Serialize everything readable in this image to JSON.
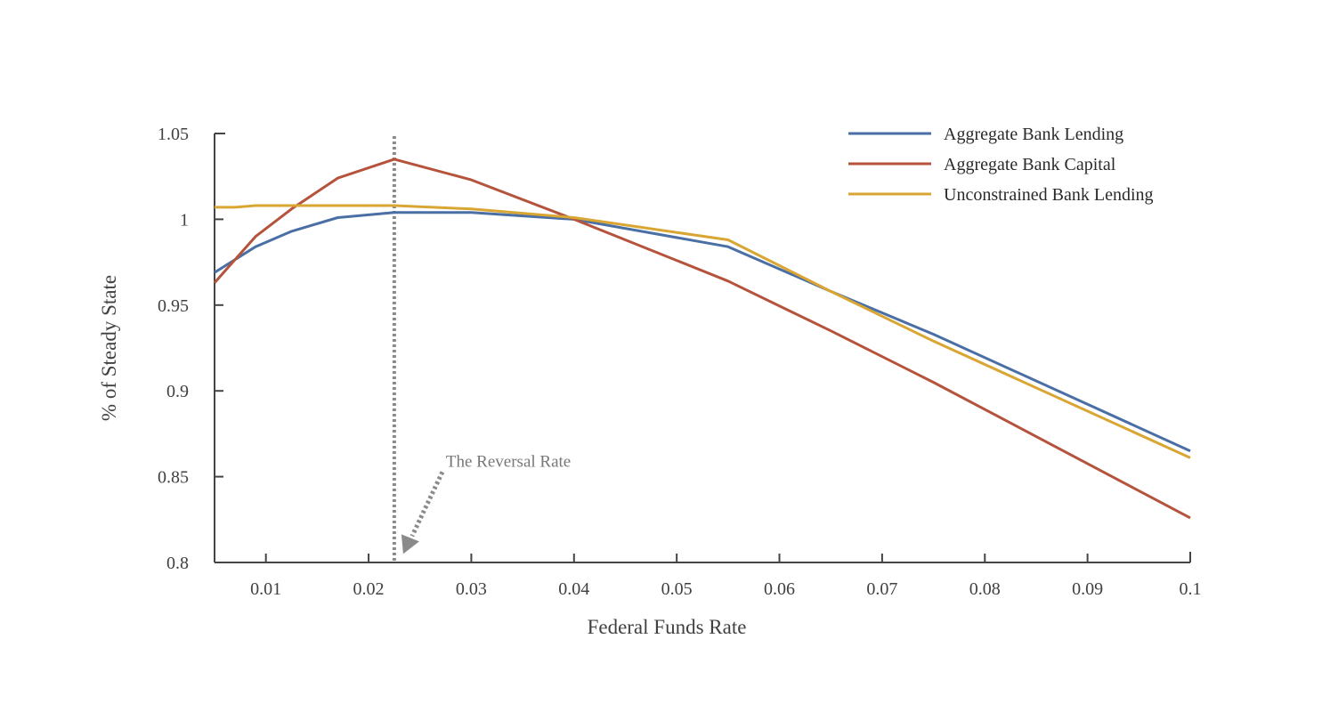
{
  "chart_data": {
    "type": "line",
    "xlabel": "Federal Funds Rate",
    "ylabel": "% of Steady State",
    "xlim": [
      0.005,
      0.1
    ],
    "ylim": [
      0.8,
      1.05
    ],
    "x_ticks": [
      0.01,
      0.02,
      0.03,
      0.04,
      0.05,
      0.06,
      0.07,
      0.08,
      0.09,
      0.1
    ],
    "x_tick_labels": [
      "0.01",
      "0.02",
      "0.03",
      "0.04",
      "0.05",
      "0.06",
      "0.07",
      "0.08",
      "0.09",
      "0.1"
    ],
    "y_ticks": [
      0.8,
      0.85,
      0.9,
      0.95,
      1.0,
      1.05
    ],
    "y_tick_labels": [
      "0.8",
      "0.85",
      "0.9",
      "0.95",
      "1",
      "1.05"
    ],
    "grid": false,
    "legend_position": "top-right",
    "series": [
      {
        "name": "Aggregate Bank Lending",
        "color": "#4a6fa5",
        "x": [
          0.005,
          0.009,
          0.0125,
          0.017,
          0.0225,
          0.03,
          0.04,
          0.055,
          0.065,
          0.075,
          0.1
        ],
        "y": [
          0.969,
          0.984,
          0.993,
          1.001,
          1.004,
          1.004,
          1.0,
          0.984,
          0.958,
          0.933,
          0.865
        ]
      },
      {
        "name": "Aggregate Bank Capital",
        "color": "#b5533c",
        "x": [
          0.005,
          0.009,
          0.0125,
          0.017,
          0.0225,
          0.03,
          0.04,
          0.055,
          0.065,
          0.075,
          0.1
        ],
        "y": [
          0.963,
          0.99,
          1.006,
          1.024,
          1.035,
          1.023,
          1.0,
          0.964,
          0.935,
          0.905,
          0.826
        ]
      },
      {
        "name": "Unconstrained Bank Lending",
        "color": "#d9a634",
        "x": [
          0.005,
          0.007,
          0.009,
          0.0225,
          0.03,
          0.04,
          0.055,
          0.065,
          0.075,
          0.1
        ],
        "y": [
          1.007,
          1.007,
          1.008,
          1.008,
          1.006,
          1.001,
          0.988,
          0.958,
          0.929,
          0.861
        ]
      }
    ],
    "annotations": [
      {
        "type": "vertical-dotted-line",
        "x": 0.0225,
        "color": "#8a8a8a"
      },
      {
        "type": "arrow",
        "text": "The Reversal Rate",
        "x": 0.0225,
        "y": 0.805,
        "color": "#8a8a8a"
      }
    ]
  }
}
